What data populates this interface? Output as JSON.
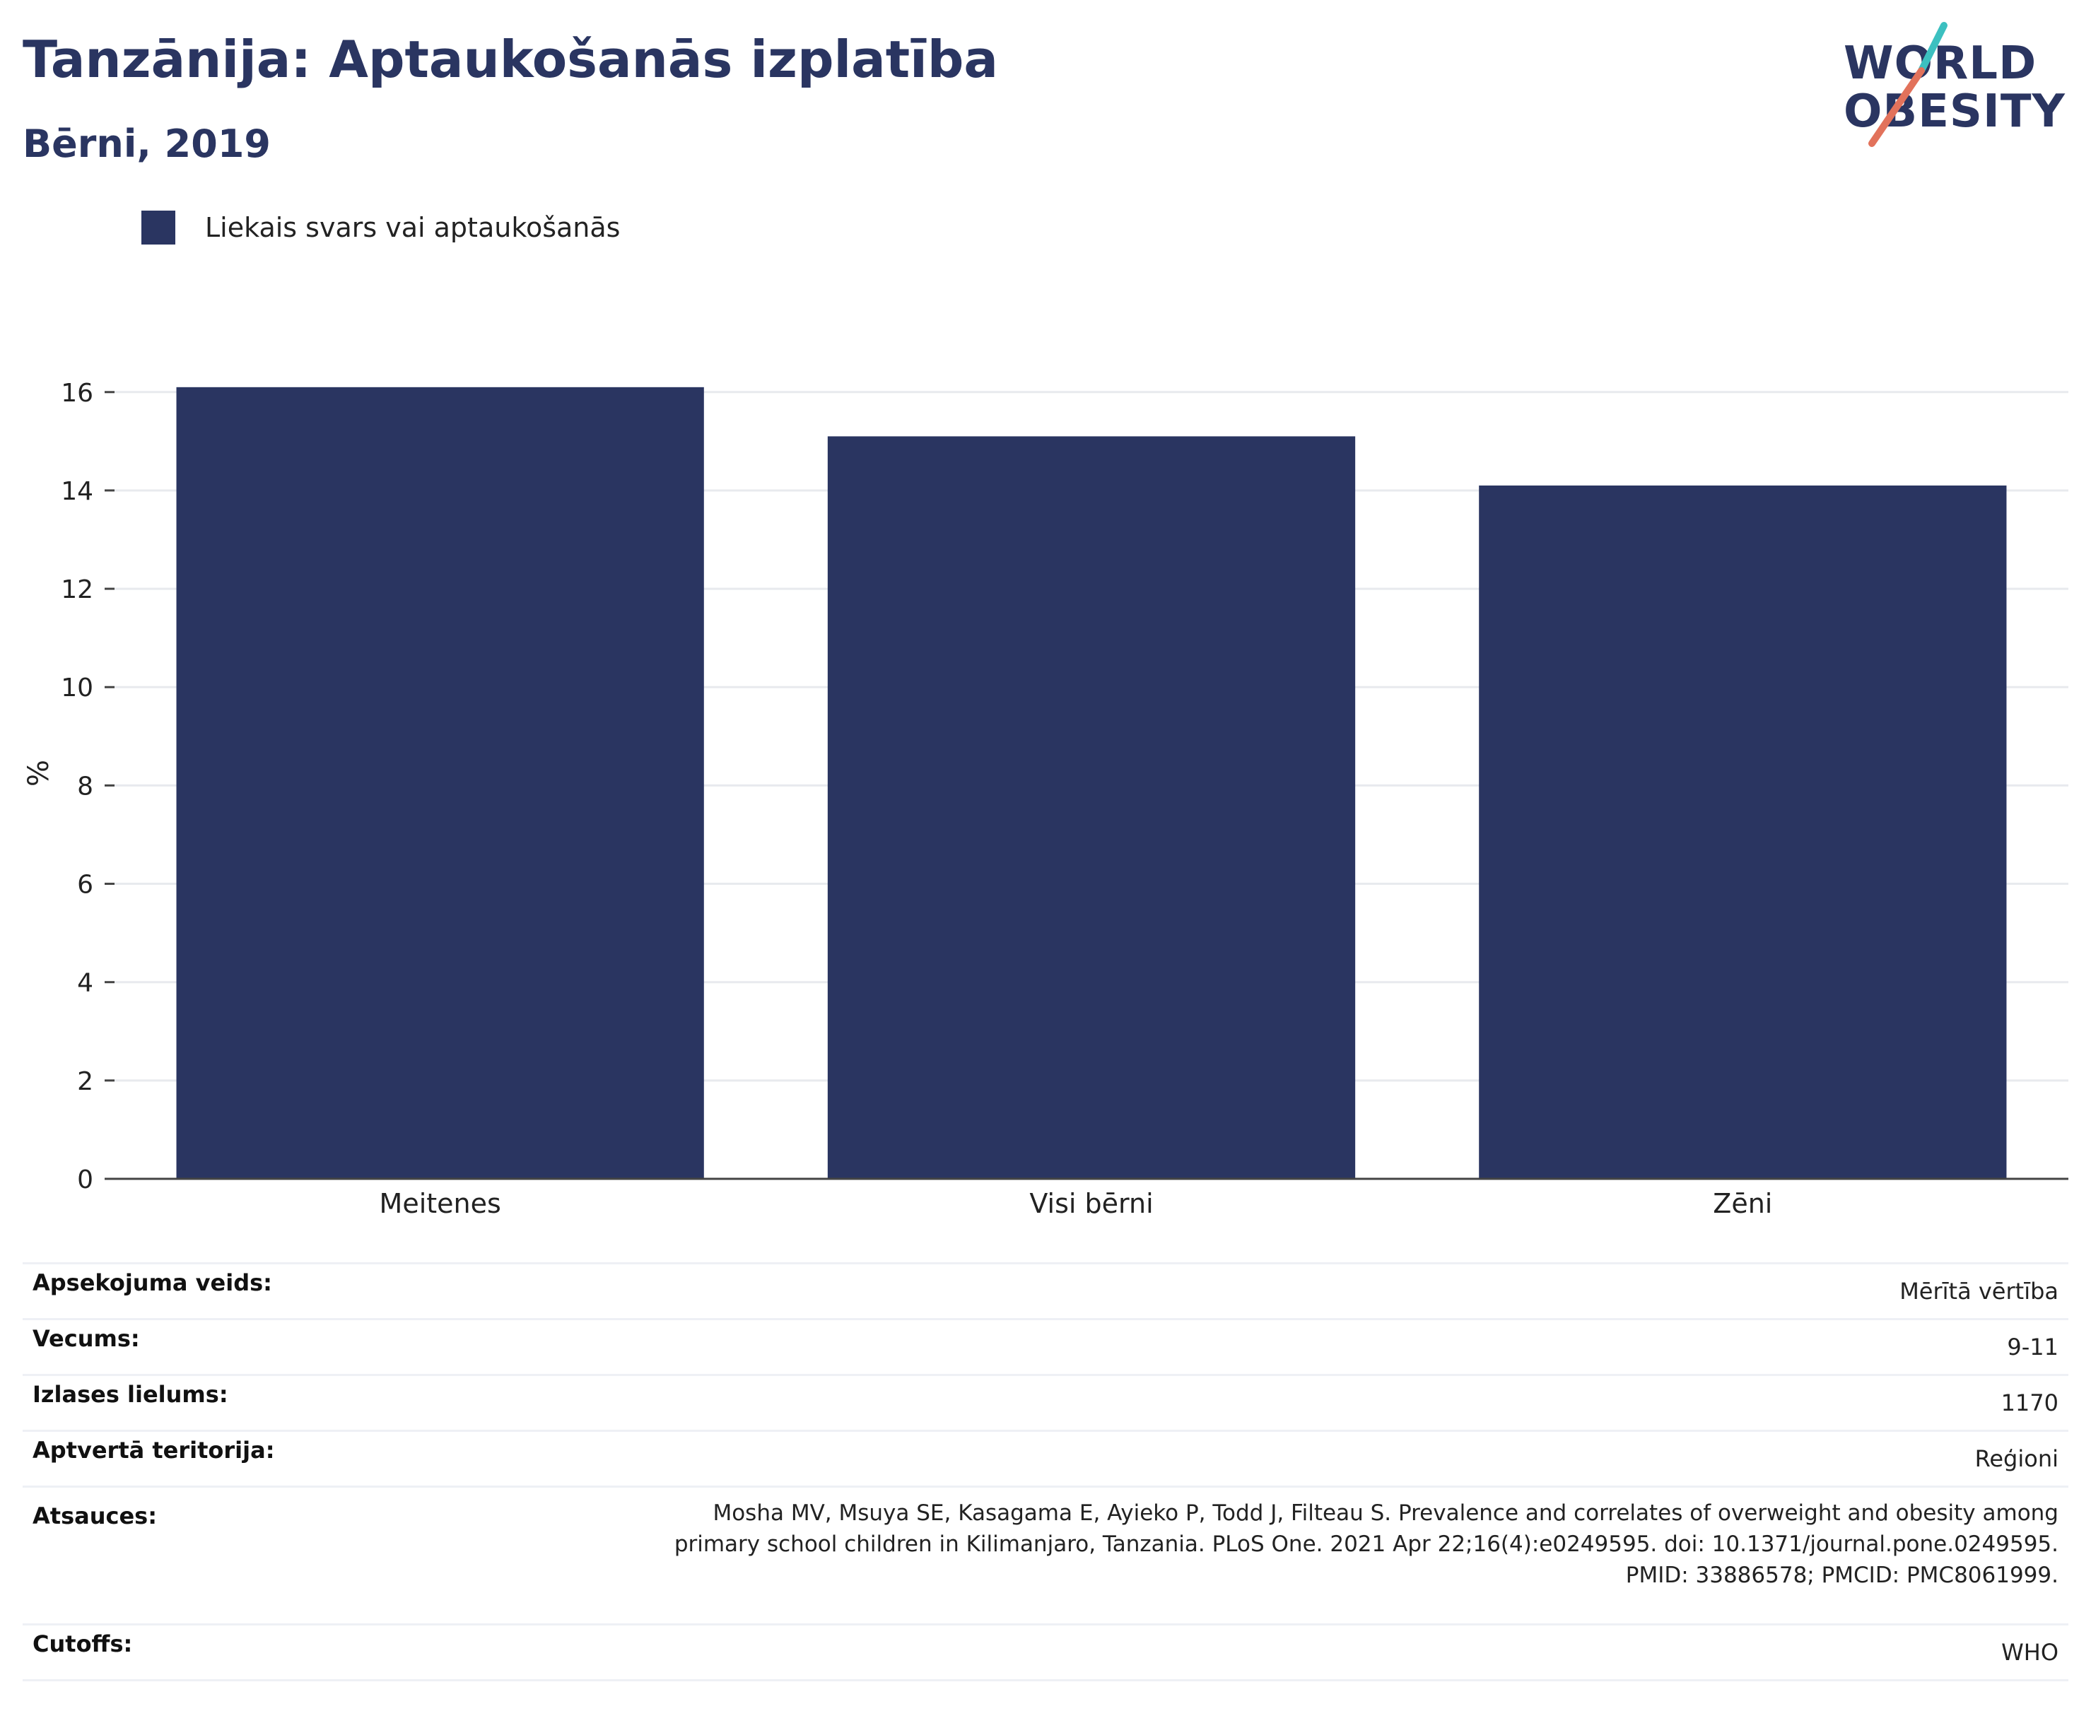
{
  "header": {
    "title": "Tanzānija: Aptaukošanās izplatība",
    "subtitle": "Bērni, 2019"
  },
  "logo": {
    "line1": "WORLD",
    "line2": "OBESITY",
    "slash_colors": [
      "#3cc0c0",
      "#e2725b"
    ]
  },
  "legend": {
    "label": "Liekais svars vai aptaukošanās",
    "color": "#2a3561"
  },
  "chart_data": {
    "type": "bar",
    "categories": [
      "Meitenes",
      "Visi bērni",
      "Zēni"
    ],
    "series": [
      {
        "name": "Liekais svars vai aptaukošanās",
        "values": [
          16.1,
          15.1,
          14.1
        ],
        "color": "#2a3561"
      }
    ],
    "ylabel": "%",
    "xlabel": "",
    "ylim": [
      0,
      16.5
    ],
    "yticks": [
      0,
      2,
      4,
      6,
      8,
      10,
      12,
      14,
      16
    ],
    "grid": true
  },
  "meta": {
    "rows": [
      {
        "key": "Apsekojuma veids:",
        "value": "Mērītā vērtība"
      },
      {
        "key": "Vecums:",
        "value": "9-11"
      },
      {
        "key": "Izlases lielums:",
        "value": "1170"
      },
      {
        "key": "Aptvertā teritorija:",
        "value": "Reģioni"
      },
      {
        "key": "Atsauces:",
        "value": "Mosha MV, Msuya SE, Kasagama E, Ayieko P, Todd J, Filteau S. Prevalence and correlates of overweight and obesity among primary school children in Kilimanjaro, Tanzania. PLoS One. 2021 Apr 22;16(4):e0249595. doi: 10.1371/journal.pone.0249595. PMID: 33886578; PMCID: PMC8061999."
      },
      {
        "key": "Cutoffs:",
        "value": "WHO"
      }
    ]
  }
}
